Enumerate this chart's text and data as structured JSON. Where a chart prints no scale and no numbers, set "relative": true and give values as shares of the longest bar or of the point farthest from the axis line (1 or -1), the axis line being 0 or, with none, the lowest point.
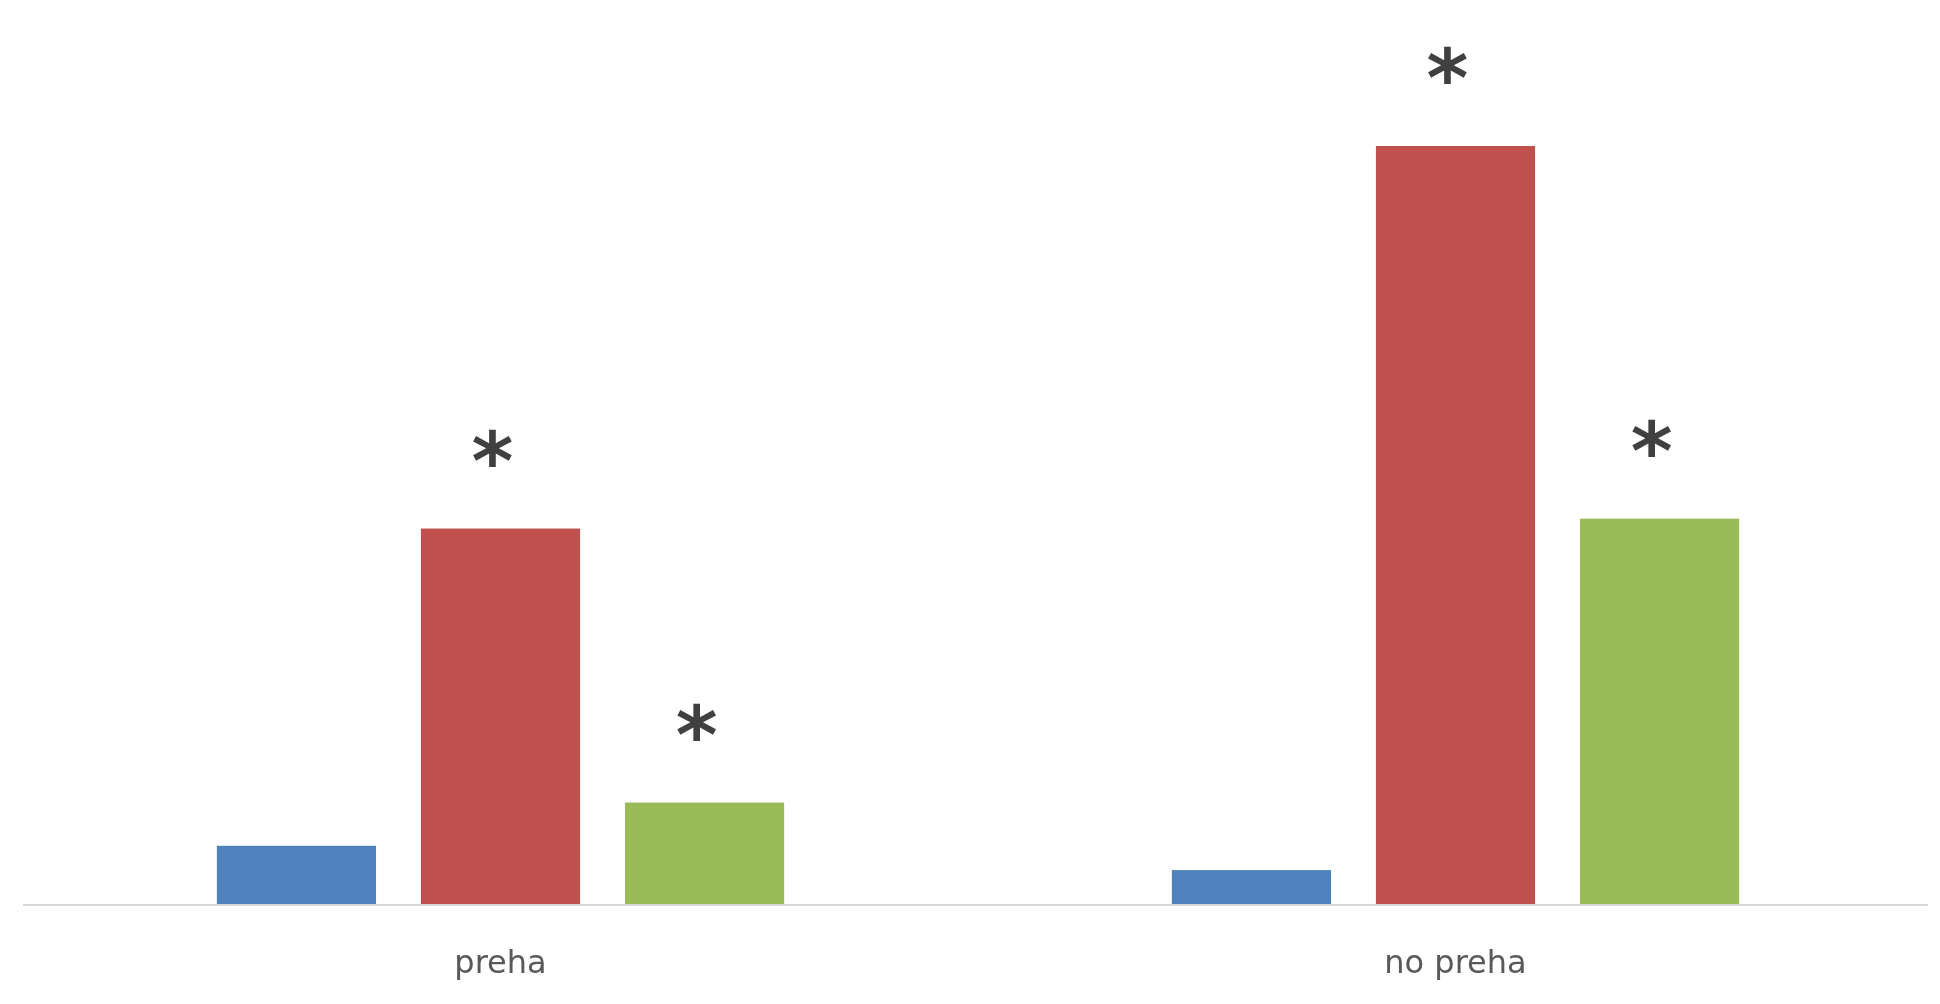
{
  "chart_data": {
    "type": "bar",
    "relative": true,
    "categories": [
      "preha",
      "no preha"
    ],
    "series": [
      {
        "color": "#4f81bd",
        "values": [
          0.078,
          0.046
        ]
      },
      {
        "color": "#c0504d",
        "values": [
          0.496,
          1.0
        ]
      },
      {
        "color": "#9bbb59",
        "values": [
          0.135,
          0.509
        ]
      }
    ],
    "annotations": [
      "*",
      "*",
      "*",
      "*"
    ]
  }
}
